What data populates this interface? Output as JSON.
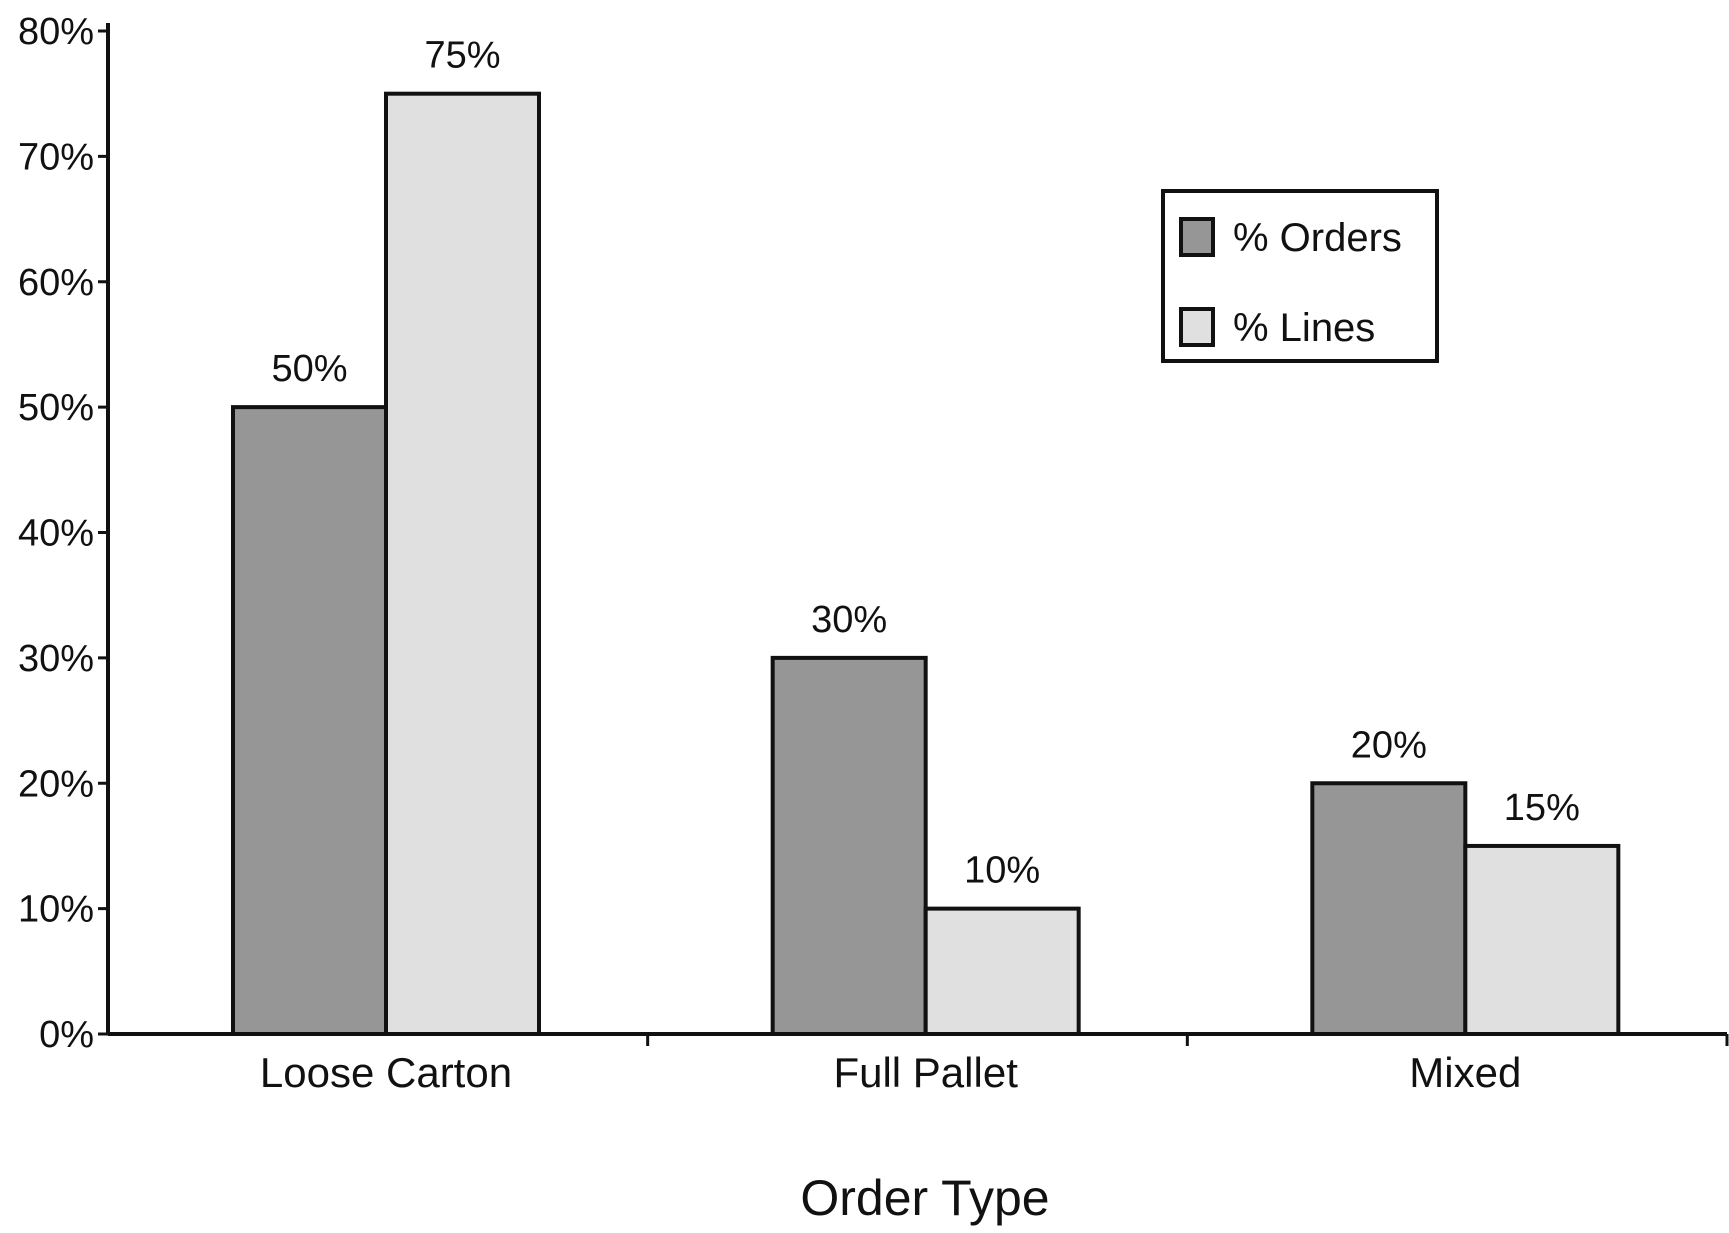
{
  "chart_data": {
    "type": "bar",
    "title": "",
    "xlabel": "Order Type",
    "ylabel": "",
    "categories": [
      "Loose Carton",
      "Full Pallet",
      "Mixed"
    ],
    "series": [
      {
        "name": "% Orders",
        "values": [
          50,
          30,
          20
        ],
        "value_labels": [
          "50%",
          "30%",
          "20%"
        ],
        "color": "#969696"
      },
      {
        "name": "% Lines",
        "values": [
          75,
          10,
          15
        ],
        "value_labels": [
          "75%",
          "10%",
          "15%"
        ],
        "color": "#e0e0e0"
      }
    ],
    "ylim": [
      0,
      80
    ],
    "y_ticks": [
      0,
      10,
      20,
      30,
      40,
      50,
      60,
      70,
      80
    ],
    "y_tick_labels": [
      "0%",
      "10%",
      "20%",
      "30%",
      "40%",
      "50%",
      "60%",
      "70%",
      "80%"
    ],
    "grid": false,
    "legend_position": "top-right",
    "colors": {
      "outline": "#111111",
      "axis": "#111111"
    }
  }
}
